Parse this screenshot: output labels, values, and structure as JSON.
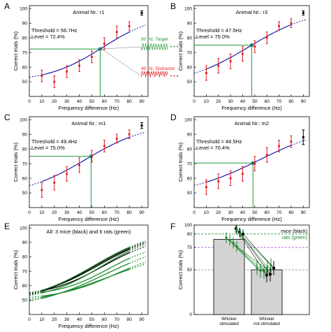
{
  "colors": {
    "fit": "#1a1aa8",
    "data": "#e11b1b",
    "control": "#000000",
    "threshold": "#1e9a3a",
    "rats": "#1e8a2e",
    "purple": "#9b30d8",
    "bar": "#d3d3d3"
  },
  "axis_common": {
    "xlabel": "Frequency difference (Hz)",
    "ylabel": "Correct trials (%)",
    "xticks": [
      "0",
      "10",
      "20",
      "30",
      "40",
      "50",
      "60",
      "70",
      "80",
      "90"
    ],
    "yticks": [
      "50",
      "60",
      "70",
      "80",
      "90",
      "100"
    ]
  },
  "chart_data": [
    {
      "panel": "A",
      "type": "line",
      "title": "Animal Nr.: r1",
      "xlim": [
        0,
        95
      ],
      "ylim": [
        40,
        102
      ],
      "threshold_text": "Threshold = 56.7Hz",
      "level_text": "Level = 72.4%",
      "threshold": 56.7,
      "level": 72.4,
      "x": [
        10,
        20,
        30,
        40,
        50,
        60,
        70,
        80
      ],
      "y": [
        54,
        50,
        57,
        61,
        67,
        76,
        84,
        88
      ],
      "err": [
        4,
        4,
        4,
        4,
        4,
        4,
        4,
        3
      ],
      "control": {
        "x": 90,
        "y": 97,
        "err": 1.5
      },
      "fit": {
        "lo": 50,
        "hi": 97,
        "k": 0.045
      },
      "inset": {
        "target": "90 Hz, Target",
        "distractor": "40 Hz, Distractor"
      }
    },
    {
      "panel": "B",
      "type": "line",
      "title": "Animal Nr.: r3",
      "xlim": [
        0,
        95
      ],
      "ylim": [
        40,
        102
      ],
      "threshold_text": "Threshold = 47.5Hz",
      "level_text": "Level = 75.0%",
      "threshold": 47.5,
      "level": 75.0,
      "x": [
        10,
        20,
        30,
        40,
        50,
        60,
        70,
        80
      ],
      "y": [
        56,
        61,
        64,
        69,
        74,
        80,
        88,
        90
      ],
      "err": [
        5,
        5,
        5,
        5,
        4,
        4,
        3,
        3
      ],
      "control": {
        "x": 90,
        "y": 97,
        "err": 1.5
      },
      "fit": {
        "lo": 48,
        "hi": 100,
        "k": 0.038
      }
    },
    {
      "panel": "C",
      "type": "line",
      "title": "Animal Nr.: m1",
      "xlim": [
        0,
        95
      ],
      "ylim": [
        40,
        102
      ],
      "threshold_text": "Threshold = 49.4Hz",
      "level_text": "Level = 75.0%",
      "threshold": 49.4,
      "level": 75.0,
      "x": [
        10,
        20,
        30,
        40,
        50,
        60,
        70,
        80
      ],
      "y": [
        52,
        57,
        63,
        69,
        75,
        82,
        87,
        90
      ],
      "err": [
        5,
        5,
        5,
        5,
        4,
        4,
        3,
        3
      ],
      "control": {
        "x": 90,
        "y": 96,
        "err": 2
      },
      "fit": {
        "lo": 48,
        "hi": 98,
        "k": 0.04
      }
    },
    {
      "panel": "D",
      "type": "line",
      "title": "Animal Nr.: m2",
      "xlim": [
        0,
        95
      ],
      "ylim": [
        40,
        102
      ],
      "threshold_text": "Threshold = 48.5Hz",
      "level_text": "Level = 70.4%",
      "threshold": 48.5,
      "level": 70.4,
      "x": [
        10,
        20,
        30,
        40,
        50,
        60,
        70,
        80
      ],
      "y": [
        54,
        58,
        60,
        63,
        70,
        76,
        82,
        85
      ],
      "err": [
        5,
        5,
        5,
        5,
        5,
        5,
        4,
        4
      ],
      "control": {
        "x": 90,
        "y": 88,
        "err": 5
      },
      "fit": {
        "lo": 48,
        "hi": 97,
        "k": 0.033
      }
    },
    {
      "panel": "E",
      "type": "line",
      "title": "All: 3 mice (black) and 6 rats (green)",
      "xlim": [
        0,
        95
      ],
      "ylim": [
        40,
        102
      ],
      "series": [
        {
          "group": "mice",
          "lo": 50,
          "hi": 98,
          "k": 0.04,
          "shift": 0
        },
        {
          "group": "mice",
          "lo": 46,
          "hi": 100,
          "k": 0.036,
          "shift": -4
        },
        {
          "group": "mice",
          "lo": 52,
          "hi": 95,
          "k": 0.044,
          "shift": 4
        },
        {
          "group": "rats",
          "lo": 50,
          "hi": 96,
          "k": 0.045,
          "shift": 2
        },
        {
          "group": "rats",
          "lo": 48,
          "hi": 100,
          "k": 0.038,
          "shift": -3
        },
        {
          "group": "rats",
          "lo": 44,
          "hi": 92,
          "k": 0.034,
          "shift": 6
        },
        {
          "group": "rats",
          "lo": 53,
          "hi": 90,
          "k": 0.05,
          "shift": 8
        },
        {
          "group": "rats",
          "lo": 45,
          "hi": 88,
          "k": 0.03,
          "shift": 10
        },
        {
          "group": "rats",
          "lo": 50,
          "hi": 86,
          "k": 0.042,
          "shift": 14
        }
      ]
    },
    {
      "panel": "F",
      "type": "bar",
      "categories": [
        "Whisker stimulated",
        "Whisker not-stimulated"
      ],
      "values": [
        84,
        50
      ],
      "ylim": [
        0,
        100
      ],
      "yticks": [
        "0",
        "50",
        "75",
        "90",
        "100"
      ],
      "legend": [
        "mice (black)",
        "rats (green)"
      ],
      "ref_lines": [
        90,
        75,
        50
      ],
      "pairs": [
        {
          "group": "mice",
          "a": 96,
          "b": 44,
          "ea": 5,
          "eb": 8
        },
        {
          "group": "mice",
          "a": 92,
          "b": 45,
          "ea": 5,
          "eb": 8
        },
        {
          "group": "mice",
          "a": 90,
          "b": 52,
          "ea": 5,
          "eb": 8
        },
        {
          "group": "rats",
          "a": 95,
          "b": 53,
          "ea": 6,
          "eb": 8
        },
        {
          "group": "rats",
          "a": 90,
          "b": 55,
          "ea": 6,
          "eb": 8
        },
        {
          "group": "rats",
          "a": 86,
          "b": 52,
          "ea": 6,
          "eb": 8
        },
        {
          "group": "rats",
          "a": 83,
          "b": 49,
          "ea": 6,
          "eb": 8
        },
        {
          "group": "rats",
          "a": 80,
          "b": 48,
          "ea": 6,
          "eb": 8
        },
        {
          "group": "rats",
          "a": 76,
          "b": 50,
          "ea": 6,
          "eb": 8
        }
      ]
    }
  ]
}
